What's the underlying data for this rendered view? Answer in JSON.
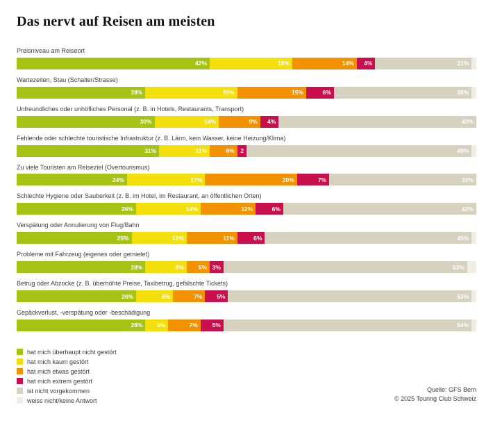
{
  "title": "Das nervt auf Reisen am meisten",
  "footer": {
    "source": "Quelle: GFS Bern",
    "copyright": "© 2025 Touring Club Schweiz"
  },
  "legend": [
    {
      "label": "hat mich überhaupt nicht gestört",
      "color": "#a6c215"
    },
    {
      "label": "hat mich kaum gestört",
      "color": "#f3df0b"
    },
    {
      "label": "hat mich etwas gestört",
      "color": "#f39200"
    },
    {
      "label": "hat mich extrem gestört",
      "color": "#c9104c"
    },
    {
      "label": "ist nicht vorgekommen",
      "color": "#d7d2c0"
    },
    {
      "label": "weiss nicht/keine Antwort",
      "color": "#efede5"
    }
  ],
  "chart_data": {
    "type": "bar",
    "orientation": "horizontal",
    "stacked": true,
    "title": "Das nervt auf Reisen am meisten",
    "xlim": [
      0,
      100
    ],
    "value_suffix": "%",
    "grid": false,
    "legend_position": "bottom-left",
    "categories": [
      "Preisniveau am Reiseort",
      "Wartezeiten, Stau (Schalter/Strasse)",
      "Unfreundliches oder unhöfliches Personal (z. B. in Hotels, Restaurants, Transport)",
      "Fehlende oder schlechte touristische Infrastruktur (z. B. Lärm, kein Wasser, keine Heizung/Klima)",
      "Zu viele Touristen am Reiseziel (Overtourismus)",
      "Schlechte Hygiene oder Sauberkeit (z. B. im Hotel, im Restaurant, an öffentlichen Orten)",
      "Verspätung oder Annulierung von Flug/Bahn",
      "Probleme mit Fahrzeug (eigenes oder gemietet)",
      "Betrug oder Abzocke (z. B. überhöhte Preise, Taxibetrug, gefälschte Tickets)",
      "Gepäckverlust, -verspätung oder -beschädigung"
    ],
    "series": [
      {
        "name": "hat mich überhaupt nicht gestört",
        "color": "#a6c215",
        "values": [
          42,
          28,
          30,
          31,
          24,
          26,
          25,
          28,
          26,
          28
        ]
      },
      {
        "name": "hat mich kaum gestört",
        "color": "#f3df0b",
        "values": [
          18,
          20,
          14,
          11,
          17,
          14,
          12,
          9,
          8,
          5
        ]
      },
      {
        "name": "hat mich etwas gestört",
        "color": "#f39200",
        "values": [
          14,
          15,
          9,
          6,
          20,
          12,
          11,
          5,
          7,
          7
        ]
      },
      {
        "name": "hat mich extrem gestört",
        "color": "#c9104c",
        "values": [
          4,
          6,
          4,
          2,
          7,
          6,
          6,
          3,
          5,
          5
        ]
      },
      {
        "name": "ist nicht vorgekommen",
        "color": "#d7d2c0",
        "values": [
          21,
          30,
          43,
          49,
          32,
          42,
          45,
          53,
          53,
          54
        ]
      },
      {
        "name": "weiss nicht/keine Antwort",
        "color": "#efede5",
        "values": [
          1,
          1,
          0,
          1,
          0,
          0,
          1,
          2,
          1,
          1
        ]
      }
    ]
  }
}
